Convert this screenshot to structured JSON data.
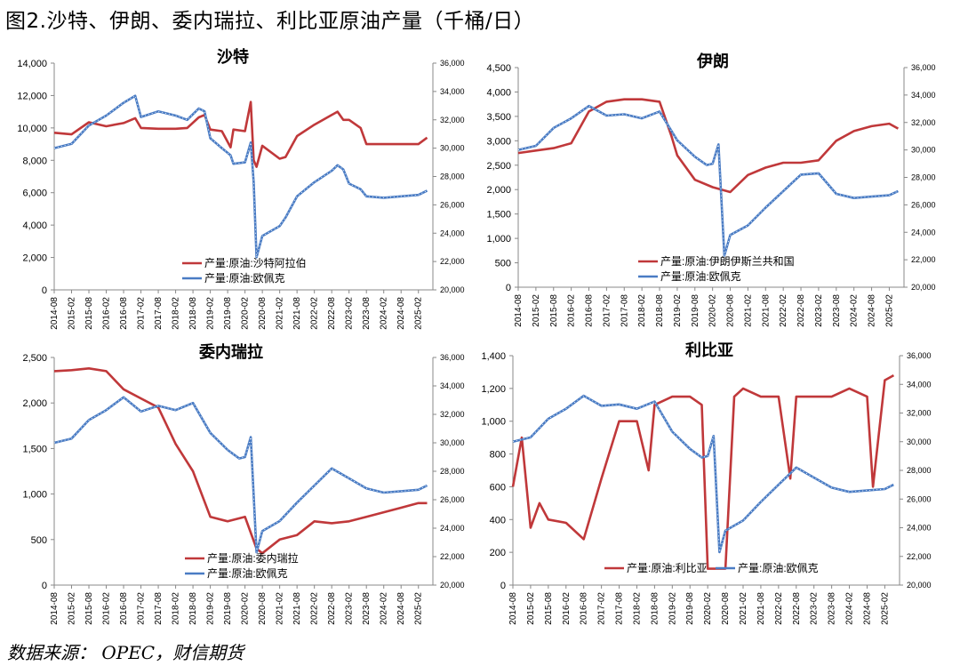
{
  "figure_title": "图2.沙特、伊朗、委内瑞拉、利比亚原油产量（千桶/日）",
  "source_note": "数据来源：  OPEC，财信期货",
  "colors": {
    "production": "#c0383a",
    "brent": "#4a7cc4",
    "grid": "#d9d9d9",
    "axis": "#888888"
  },
  "x_ticks": [
    "2014-08",
    "2015-02",
    "2015-08",
    "2016-02",
    "2016-08",
    "2017-02",
    "2017-08",
    "2018-02",
    "2018-08",
    "2019-02",
    "2019-08",
    "2020-02",
    "2020-08",
    "2021-02",
    "2021-08",
    "2022-02",
    "2022-08",
    "2023-02",
    "2023-08",
    "2024-02",
    "2024-08",
    "2025-02"
  ],
  "chart_data": [
    {
      "type": "line",
      "title": "沙特",
      "y_left_ticks": [
        "0",
        "2,000",
        "4,000",
        "6,000",
        "8,000",
        "10,000",
        "12,000",
        "14,000"
      ],
      "y_right_ticks": [
        "20,000",
        "22,000",
        "24,000",
        "26,000",
        "28,000",
        "30,000",
        "32,000",
        "34,000",
        "36,000"
      ],
      "ylim_left": [
        0,
        14000
      ],
      "ylim_right": [
        20000,
        36000
      ],
      "legend": "bottom-center",
      "series": [
        {
          "name": "产量:原油:沙特阿拉伯",
          "axis": "left",
          "x": [
            "2014-08",
            "2015-02",
            "2015-08",
            "2016-02",
            "2016-08",
            "2016-12",
            "2017-02",
            "2017-08",
            "2018-02",
            "2018-06",
            "2018-10",
            "2018-12",
            "2019-02",
            "2019-06",
            "2019-09",
            "2019-10",
            "2020-02",
            "2020-04",
            "2020-05",
            "2020-06",
            "2020-08",
            "2021-02",
            "2021-04",
            "2021-08",
            "2022-02",
            "2022-08",
            "2022-10",
            "2022-12",
            "2023-02",
            "2023-06",
            "2023-08",
            "2024-02",
            "2024-08",
            "2025-02",
            "2025-05"
          ],
          "values": [
            9700,
            9600,
            10350,
            10100,
            10300,
            10600,
            10000,
            9950,
            9950,
            10000,
            10650,
            10800,
            9900,
            9800,
            8800,
            9900,
            9800,
            11600,
            8000,
            7600,
            8900,
            8100,
            8200,
            9500,
            10200,
            10800,
            11000,
            10500,
            10500,
            10000,
            9000,
            9000,
            9000,
            9000,
            9400
          ]
        },
        {
          "name": "产量:原油:欧佩克",
          "axis": "right",
          "x": [
            "2014-08",
            "2015-02",
            "2015-08",
            "2016-02",
            "2016-08",
            "2016-12",
            "2017-02",
            "2017-08",
            "2018-02",
            "2018-06",
            "2018-10",
            "2018-12",
            "2019-02",
            "2019-06",
            "2019-09",
            "2019-10",
            "2020-02",
            "2020-04",
            "2020-05",
            "2020-06",
            "2020-08",
            "2021-02",
            "2021-04",
            "2021-08",
            "2022-02",
            "2022-08",
            "2022-10",
            "2022-12",
            "2023-02",
            "2023-06",
            "2023-08",
            "2024-02",
            "2024-08",
            "2025-02",
            "2025-05"
          ],
          "values": [
            30000,
            30300,
            31600,
            32300,
            33200,
            33700,
            32200,
            32600,
            32300,
            32000,
            32800,
            32600,
            30700,
            30000,
            29500,
            28900,
            29000,
            30400,
            27600,
            22300,
            23800,
            24500,
            25100,
            26600,
            27600,
            28400,
            28800,
            28500,
            27500,
            27100,
            26600,
            26500,
            26600,
            26700,
            27000
          ]
        }
      ]
    },
    {
      "type": "line",
      "title": "伊朗",
      "y_left_ticks": [
        "0",
        "500",
        "1,000",
        "1,500",
        "2,000",
        "2,500",
        "3,000",
        "3,500",
        "4,000",
        "4,500"
      ],
      "y_right_ticks": [
        "20,000",
        "22,000",
        "24,000",
        "26,000",
        "28,000",
        "30,000",
        "32,000",
        "34,000",
        "36,000"
      ],
      "ylim_left": [
        0,
        4500
      ],
      "ylim_right": [
        20000,
        36000
      ],
      "legend": "bottom-center",
      "series": [
        {
          "name": "产量:原油:伊朗伊斯兰共和国",
          "axis": "left",
          "x": [
            "2014-08",
            "2015-02",
            "2015-08",
            "2016-02",
            "2016-08",
            "2017-02",
            "2017-08",
            "2018-02",
            "2018-08",
            "2018-12",
            "2019-02",
            "2019-08",
            "2020-02",
            "2020-08",
            "2021-02",
            "2021-08",
            "2022-02",
            "2022-08",
            "2023-02",
            "2023-08",
            "2024-02",
            "2024-08",
            "2025-02",
            "2025-05"
          ],
          "values": [
            2750,
            2800,
            2850,
            2950,
            3600,
            3800,
            3850,
            3850,
            3800,
            3100,
            2700,
            2200,
            2050,
            1950,
            2300,
            2450,
            2550,
            2550,
            2600,
            3000,
            3200,
            3300,
            3350,
            3250
          ]
        },
        {
          "name": "产量:原油:欧佩克",
          "axis": "right",
          "x": [
            "2014-08",
            "2015-02",
            "2015-08",
            "2016-02",
            "2016-08",
            "2017-02",
            "2017-08",
            "2018-02",
            "2018-08",
            "2019-02",
            "2019-08",
            "2019-12",
            "2020-02",
            "2020-04",
            "2020-06",
            "2020-08",
            "2021-02",
            "2021-08",
            "2022-02",
            "2022-08",
            "2023-02",
            "2023-08",
            "2024-02",
            "2024-08",
            "2025-02",
            "2025-05"
          ],
          "values": [
            30000,
            30300,
            31600,
            32300,
            33200,
            32500,
            32600,
            32300,
            32800,
            30700,
            29500,
            28900,
            29000,
            30400,
            22300,
            23800,
            24500,
            25800,
            27000,
            28200,
            28300,
            26800,
            26500,
            26600,
            26700,
            27000
          ]
        }
      ]
    },
    {
      "type": "line",
      "title": "委内瑞拉",
      "y_left_ticks": [
        "0",
        "500",
        "1,000",
        "1,500",
        "2,000",
        "2,500"
      ],
      "y_right_ticks": [
        "20,000",
        "22,000",
        "24,000",
        "26,000",
        "28,000",
        "30,000",
        "32,000",
        "34,000",
        "36,000"
      ],
      "ylim_left": [
        0,
        2500
      ],
      "ylim_right": [
        20000,
        36000
      ],
      "legend": "bottom-center",
      "series": [
        {
          "name": "产量:原油:委内瑞拉",
          "axis": "left",
          "x": [
            "2014-08",
            "2015-02",
            "2015-08",
            "2016-02",
            "2016-08",
            "2017-02",
            "2017-08",
            "2018-02",
            "2018-08",
            "2019-02",
            "2019-08",
            "2020-02",
            "2020-06",
            "2020-08",
            "2021-02",
            "2021-08",
            "2022-02",
            "2022-08",
            "2023-02",
            "2023-08",
            "2024-02",
            "2024-08",
            "2025-02",
            "2025-05"
          ],
          "values": [
            2350,
            2360,
            2380,
            2350,
            2150,
            2050,
            1950,
            1550,
            1250,
            750,
            700,
            750,
            400,
            350,
            500,
            550,
            700,
            680,
            700,
            750,
            800,
            850,
            900,
            900
          ]
        },
        {
          "name": "产量:原油:欧佩克",
          "axis": "right",
          "x": [
            "2014-08",
            "2015-02",
            "2015-08",
            "2016-02",
            "2016-08",
            "2017-02",
            "2017-08",
            "2018-02",
            "2018-08",
            "2019-02",
            "2019-08",
            "2019-12",
            "2020-02",
            "2020-04",
            "2020-06",
            "2020-08",
            "2021-02",
            "2021-08",
            "2022-02",
            "2022-08",
            "2023-02",
            "2023-08",
            "2024-02",
            "2024-08",
            "2025-02",
            "2025-05"
          ],
          "values": [
            30000,
            30300,
            31600,
            32300,
            33200,
            32200,
            32600,
            32300,
            32800,
            30700,
            29500,
            28900,
            29000,
            30400,
            22300,
            23800,
            24500,
            25800,
            27000,
            28200,
            27500,
            26800,
            26500,
            26600,
            26700,
            27000
          ]
        }
      ]
    },
    {
      "type": "line",
      "title": "利比亚",
      "y_left_ticks": [
        "0",
        "200",
        "400",
        "600",
        "800",
        "1,000",
        "1,200",
        "1,400"
      ],
      "y_right_ticks": [
        "20,000",
        "22,000",
        "24,000",
        "26,000",
        "28,000",
        "30,000",
        "32,000",
        "34,000",
        "36,000"
      ],
      "ylim_left": [
        0,
        1400
      ],
      "ylim_right": [
        20000,
        36000
      ],
      "legend": "bottom-center",
      "series": [
        {
          "name": "产量:原油:利比亚",
          "axis": "left",
          "x": [
            "2014-08",
            "2014-11",
            "2015-02",
            "2015-05",
            "2015-08",
            "2016-02",
            "2016-08",
            "2017-02",
            "2017-08",
            "2018-02",
            "2018-06",
            "2018-08",
            "2019-02",
            "2019-08",
            "2019-12",
            "2020-02",
            "2020-08",
            "2020-11",
            "2021-02",
            "2021-08",
            "2022-02",
            "2022-06",
            "2022-08",
            "2023-02",
            "2023-08",
            "2024-02",
            "2024-08",
            "2024-10",
            "2025-02",
            "2025-05"
          ],
          "values": [
            600,
            900,
            350,
            500,
            400,
            380,
            280,
            650,
            1000,
            1000,
            700,
            1100,
            1150,
            1150,
            1100,
            100,
            100,
            1150,
            1200,
            1150,
            1150,
            650,
            1150,
            1150,
            1150,
            1200,
            1150,
            600,
            1250,
            1280
          ]
        },
        {
          "name": "产量:原油:欧佩克",
          "axis": "right",
          "x": [
            "2014-08",
            "2015-02",
            "2015-08",
            "2016-02",
            "2016-08",
            "2017-02",
            "2017-08",
            "2018-02",
            "2018-08",
            "2019-02",
            "2019-08",
            "2019-12",
            "2020-02",
            "2020-04",
            "2020-06",
            "2020-08",
            "2021-02",
            "2021-08",
            "2022-02",
            "2022-08",
            "2023-02",
            "2023-08",
            "2024-02",
            "2024-08",
            "2025-02",
            "2025-05"
          ],
          "values": [
            30000,
            30300,
            31600,
            32300,
            33200,
            32500,
            32600,
            32300,
            32800,
            30700,
            29500,
            28900,
            29000,
            30400,
            22300,
            23800,
            24500,
            25800,
            27000,
            28200,
            27500,
            26800,
            26500,
            26600,
            26700,
            27000
          ]
        }
      ]
    }
  ]
}
